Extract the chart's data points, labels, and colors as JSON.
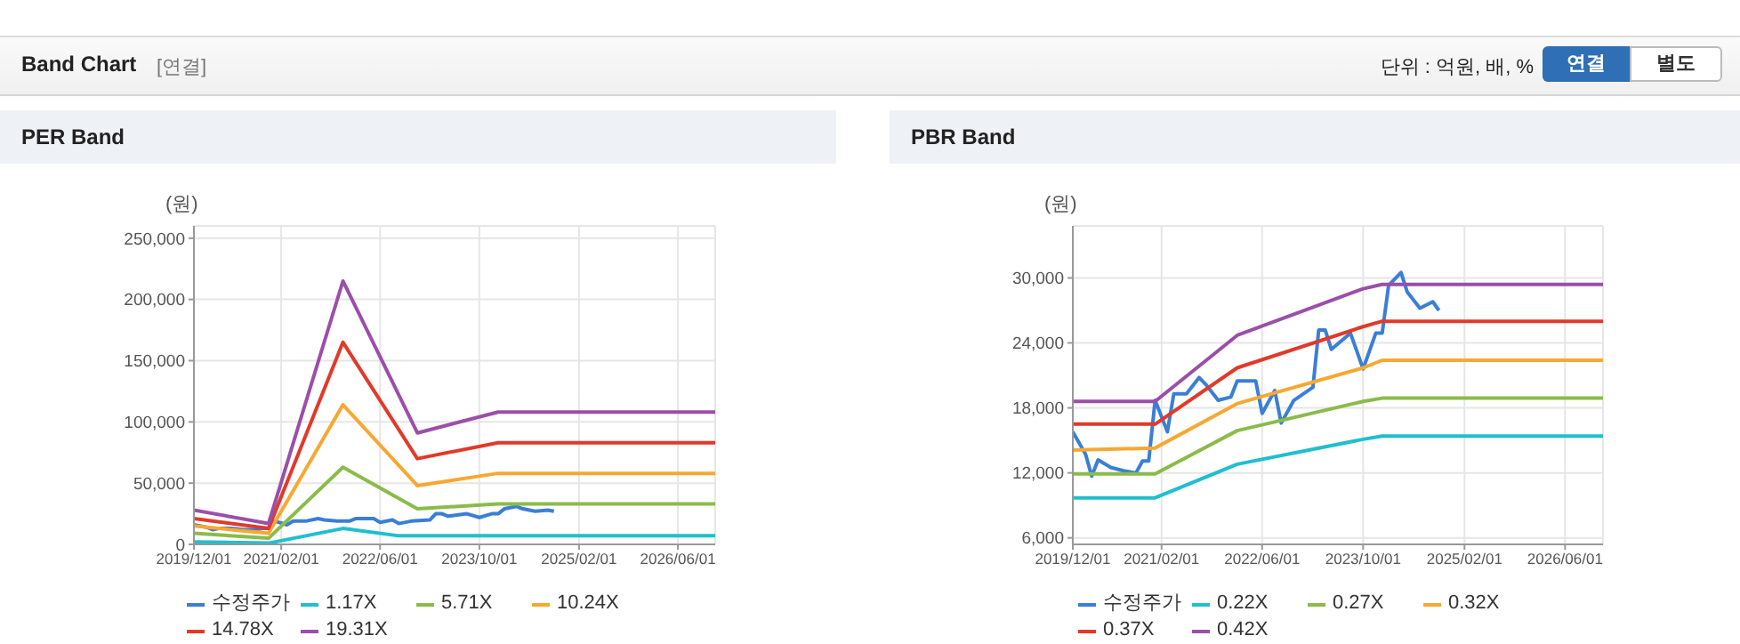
{
  "chart_data": [
    {
      "type": "other",
      "title": "Band Chart",
      "subtitle": "[연결]",
      "annotations": [
        "단위 : 억원, 배, %",
        "연결",
        "별도"
      ]
    },
    {
      "type": "line",
      "title": "PER Band",
      "ylabel": "(원)",
      "xlim": [
        "2019-12-01",
        "2026-12-01"
      ],
      "xticks": [
        {
          "value": "2019-12-01",
          "label": "2019/12/01"
        },
        {
          "value": "2021-02-01",
          "label": "2021/02/01"
        },
        {
          "value": "2022-06-01",
          "label": "2022/06/01"
        },
        {
          "value": "2023-10-01",
          "label": "2023/10/01"
        },
        {
          "value": "2025-02-01",
          "label": "2025/02/01"
        },
        {
          "value": "2026-06-01",
          "label": "2026/06/01"
        }
      ],
      "ylim": [
        0,
        260000
      ],
      "yticks": [
        0,
        {
          "value": 50000,
          "label": "50,000"
        },
        {
          "value": 100000,
          "label": "100,000"
        },
        {
          "value": 150000,
          "label": "150,000"
        },
        {
          "value": 200000,
          "label": "200,000"
        },
        {
          "value": 250000,
          "label": "250,000"
        }
      ],
      "grid": true,
      "legend": "bottom",
      "series": [
        {
          "name": "수정주가",
          "color": "#3a7fd5",
          "x": [
            "2019-12",
            "2020-02",
            "2020-03",
            "2020-04",
            "2020-06",
            "2020-08",
            "2020-10",
            "2020-11",
            "2020-12",
            "2021-01",
            "2021-03",
            "2021-04",
            "2021-06",
            "2021-08",
            "2021-09",
            "2021-11",
            "2022-01",
            "2022-02",
            "2022-05",
            "2022-06",
            "2022-08",
            "2022-09",
            "2022-11",
            "2023-02",
            "2023-03",
            "2023-04",
            "2023-05",
            "2023-08",
            "2023-10",
            "2023-12",
            "2024-01",
            "2024-02",
            "2024-04",
            "2024-05",
            "2024-07",
            "2024-09",
            "2024-10"
          ],
          "values": [
            16000,
            14000,
            12000,
            13000,
            13000,
            12000,
            12000,
            13000,
            13000,
            19000,
            16000,
            19000,
            19000,
            21000,
            20000,
            19000,
            19000,
            21000,
            21000,
            18000,
            20000,
            17000,
            19000,
            20000,
            25000,
            25000,
            23000,
            25000,
            22000,
            25000,
            25000,
            29000,
            31000,
            29000,
            27000,
            28000,
            27000
          ]
        },
        {
          "name": "1.17X",
          "color": "#1fbfcf",
          "x": [
            "2019-12",
            "2020-12",
            "2021-12",
            "2022-09",
            "2026-12"
          ],
          "values": [
            2000,
            1000,
            13000,
            7000,
            7000
          ]
        },
        {
          "name": "5.71X",
          "color": "#8bbb4a",
          "x": [
            "2019-12",
            "2020-12",
            "2021-12",
            "2022-12",
            "2024-01",
            "2026-12"
          ],
          "values": [
            9000,
            5000,
            63000,
            29000,
            33000,
            33000
          ]
        },
        {
          "name": "10.24X",
          "color": "#f7a832",
          "x": [
            "2019-12",
            "2020-12",
            "2021-12",
            "2022-12",
            "2024-01",
            "2026-12"
          ],
          "values": [
            15000,
            9000,
            114000,
            48000,
            58000,
            58000
          ]
        },
        {
          "name": "14.78X",
          "color": "#e03a2a",
          "x": [
            "2019-12",
            "2020-12",
            "2021-12",
            "2022-12",
            "2024-01",
            "2026-12"
          ],
          "values": [
            21000,
            13000,
            165000,
            70000,
            83000,
            83000
          ]
        },
        {
          "name": "19.31X",
          "color": "#9b4fa8",
          "x": [
            "2019-12",
            "2020-12",
            "2021-12",
            "2022-12",
            "2024-01",
            "2026-12"
          ],
          "values": [
            28000,
            17000,
            215000,
            91000,
            108000,
            108000
          ]
        }
      ]
    },
    {
      "type": "line",
      "title": "PBR Band",
      "ylabel": "(원)",
      "xlim": [
        "2019-12-01",
        "2026-12-01"
      ],
      "xticks": [
        {
          "value": "2019-12-01",
          "label": "2019/12/01"
        },
        {
          "value": "2021-02-01",
          "label": "2021/02/01"
        },
        {
          "value": "2022-06-01",
          "label": "2022/06/01"
        },
        {
          "value": "2023-10-01",
          "label": "2023/10/01"
        },
        {
          "value": "2025-02-01",
          "label": "2025/02/01"
        },
        {
          "value": "2026-06-01",
          "label": "2026/06/01"
        }
      ],
      "ylim": [
        5400,
        34800
      ],
      "yticks": [
        {
          "value": 6000,
          "label": "6,000"
        },
        {
          "value": 12000,
          "label": "12,000"
        },
        {
          "value": 18000,
          "label": "18,000"
        },
        {
          "value": 24000,
          "label": "24,000"
        },
        {
          "value": 30000,
          "label": "30,000"
        }
      ],
      "grid": true,
      "legend": "bottom",
      "series": [
        {
          "name": "수정주가",
          "color": "#3a7fd5",
          "x": [
            "2019-12",
            "2020-02",
            "2020-03",
            "2020-04",
            "2020-06",
            "2020-08",
            "2020-10",
            "2020-11",
            "2020-12",
            "2021-01",
            "2021-03",
            "2021-04",
            "2021-06",
            "2021-08",
            "2021-09",
            "2021-11",
            "2022-01",
            "2022-02",
            "2022-05",
            "2022-06",
            "2022-08",
            "2022-09",
            "2022-11",
            "2023-02",
            "2023-03",
            "2023-04",
            "2023-05",
            "2023-08",
            "2023-10",
            "2023-12",
            "2024-01",
            "2024-02",
            "2024-04",
            "2024-05",
            "2024-07",
            "2024-09",
            "2024-10"
          ],
          "values": [
            15800,
            13700,
            11700,
            13200,
            12500,
            12200,
            12000,
            13100,
            13100,
            18700,
            15800,
            19300,
            19300,
            20800,
            20200,
            18700,
            19000,
            20500,
            20500,
            17500,
            19600,
            16600,
            18700,
            19900,
            25200,
            25200,
            23400,
            24900,
            21600,
            24900,
            24900,
            29300,
            30500,
            28700,
            27200,
            27800,
            27000
          ]
        },
        {
          "name": "0.22X",
          "color": "#1fbfcf",
          "x": [
            "2019-12",
            "2021-01",
            "2022-02",
            "2023-10",
            "2024-01",
            "2026-12"
          ],
          "values": [
            9700,
            9700,
            12800,
            15100,
            15400,
            15400
          ]
        },
        {
          "name": "0.27X",
          "color": "#8bbb4a",
          "x": [
            "2019-12",
            "2021-01",
            "2022-02",
            "2023-10",
            "2024-01",
            "2026-12"
          ],
          "values": [
            11900,
            11900,
            15900,
            18600,
            18900,
            18900
          ]
        },
        {
          "name": "0.32X",
          "color": "#f7a832",
          "x": [
            "2019-12",
            "2021-01",
            "2022-02",
            "2023-10",
            "2024-01",
            "2026-12"
          ],
          "values": [
            14100,
            14300,
            18400,
            21700,
            22400,
            22400
          ]
        },
        {
          "name": "0.37X",
          "color": "#e03a2a",
          "x": [
            "2019-12",
            "2021-01",
            "2022-02",
            "2023-10",
            "2024-01",
            "2026-12"
          ],
          "values": [
            16500,
            16500,
            21700,
            25500,
            26000,
            26000
          ]
        },
        {
          "name": "0.42X",
          "color": "#9b4fa8",
          "x": [
            "2019-12",
            "2021-01",
            "2022-02",
            "2023-10",
            "2024-01",
            "2026-12"
          ],
          "values": [
            18600,
            18600,
            24700,
            29000,
            29400,
            29400
          ]
        }
      ]
    }
  ]
}
